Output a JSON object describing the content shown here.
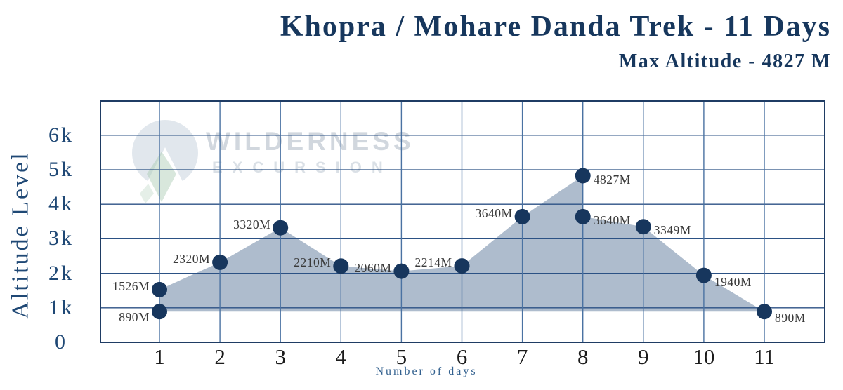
{
  "watermark": {
    "brand": "WILDERNESS",
    "brand_sub": "EXCURSION",
    "logo": "mountain-fan-logo",
    "text_color": "#b5bfca",
    "logo_green": "#a9c9b2"
  },
  "chart_data": {
    "type": "area",
    "title": "Khopra / Mohare Danda Trek - 11 Days",
    "subtitle": "Max Altitude - 4827 M",
    "xlabel": "Number of days",
    "ylabel": "Altitude Level",
    "x_ticks": [
      "1",
      "2",
      "3",
      "4",
      "5",
      "6",
      "7",
      "8",
      "9",
      "10",
      "11"
    ],
    "y_ticks": [
      {
        "label": "0",
        "value": 0
      },
      {
        "label": "1k",
        "value": 1000
      },
      {
        "label": "2k",
        "value": 2000
      },
      {
        "label": "3k",
        "value": 3000
      },
      {
        "label": "4k",
        "value": 4000
      },
      {
        "label": "5k",
        "value": 5000
      },
      {
        "label": "6k",
        "value": 6000
      }
    ],
    "ylim": [
      0,
      7000
    ],
    "grid": true,
    "legend": false,
    "area_baseline_m": 890,
    "max_altitude_m": 4827,
    "points": [
      {
        "day": 1,
        "altitude_m": 890,
        "label": "890M",
        "label_side": "left-below"
      },
      {
        "day": 1,
        "altitude_m": 1526,
        "label": "1526M",
        "label_side": "left"
      },
      {
        "day": 2,
        "altitude_m": 2320,
        "label": "2320M",
        "label_side": "left"
      },
      {
        "day": 3,
        "altitude_m": 3320,
        "label": "3320M",
        "label_side": "left"
      },
      {
        "day": 4,
        "altitude_m": 2210,
        "label": "2210M",
        "label_side": "left"
      },
      {
        "day": 5,
        "altitude_m": 2060,
        "label": "2060M",
        "label_side": "left"
      },
      {
        "day": 6,
        "altitude_m": 2214,
        "label": "2214M",
        "label_side": "left"
      },
      {
        "day": 7,
        "altitude_m": 3640,
        "label": "3640M",
        "label_side": "left"
      },
      {
        "day": 8,
        "altitude_m": 4827,
        "label": "4827M",
        "label_side": "right"
      },
      {
        "day": 8,
        "altitude_m": 3640,
        "label": "3640M",
        "label_side": "right"
      },
      {
        "day": 9,
        "altitude_m": 3349,
        "label": "3349M",
        "label_side": "right"
      },
      {
        "day": 10,
        "altitude_m": 1940,
        "label": "1940M",
        "label_side": "right-below"
      },
      {
        "day": 11,
        "altitude_m": 890,
        "label": "890M",
        "label_side": "right-below"
      }
    ],
    "colors": {
      "title": "#17375d",
      "dot": "#17365d",
      "area_fill": "#aebccd",
      "grid_horizontal": "#2b5184",
      "grid_vertical": "#4a72a2",
      "plot_border": "#1f3c64",
      "data_label": "#3a3a3a",
      "x_tick": "#1b1b1b",
      "y_tick": "#1f4875",
      "axis_title": "#33618f"
    }
  }
}
